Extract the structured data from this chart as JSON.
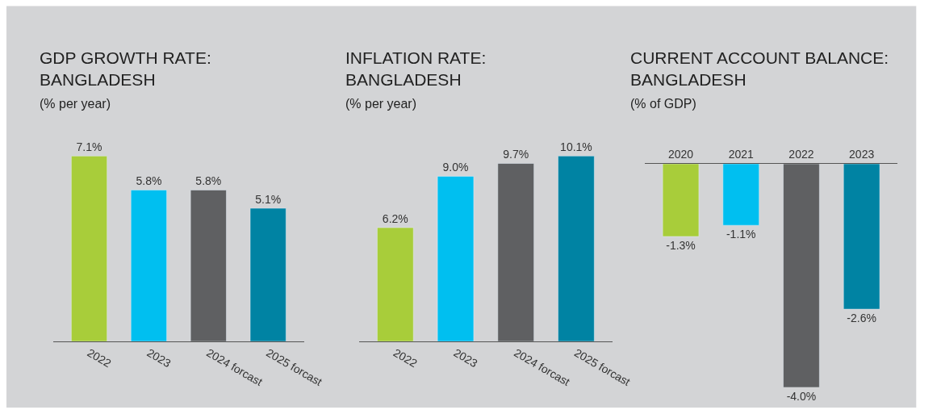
{
  "chart_data": [
    {
      "type": "bar",
      "title": "GDP GROWTH RATE:\nBANGLADESH",
      "subtitle": "(% per year)",
      "categories": [
        "2022",
        "2023",
        "2024 forcast",
        "2025 forcast"
      ],
      "values": [
        7.1,
        5.8,
        5.8,
        5.1
      ],
      "colors": [
        "#a8cd3a",
        "#00bff0",
        "#5f6062",
        "#0083a3"
      ],
      "value_labels": [
        "7.1%",
        "5.8%",
        "5.8%",
        "5.1%"
      ],
      "tick_labels": "x"
    },
    {
      "type": "bar",
      "title": "INFLATION RATE:\nBANGLADESH",
      "subtitle": "(% per year)",
      "categories": [
        "2022",
        "2023",
        "2024 forcast",
        "2025 forcast"
      ],
      "values": [
        6.2,
        9.0,
        9.7,
        10.1
      ],
      "colors": [
        "#a8cd3a",
        "#00bff0",
        "#5f6062",
        "#0083a3"
      ],
      "value_labels": [
        "6.2%",
        "9.0%",
        "9.7%",
        "10.1%"
      ],
      "tick_labels": "x"
    },
    {
      "type": "bar",
      "title": "CURRENT ACCOUNT BALANCE:\nBANGLADESH",
      "subtitle": "(% of GDP)",
      "categories": [
        "2020",
        "2021",
        "2022",
        "2023"
      ],
      "values": [
        -1.3,
        -1.1,
        -4.0,
        -2.6
      ],
      "colors": [
        "#a8cd3a",
        "#00bff0",
        "#5f6062",
        "#0083a3"
      ],
      "value_labels": [
        "-1.3%",
        "-1.1%",
        "-4.0%",
        "-2.6%"
      ],
      "tick_labels": "x"
    }
  ]
}
